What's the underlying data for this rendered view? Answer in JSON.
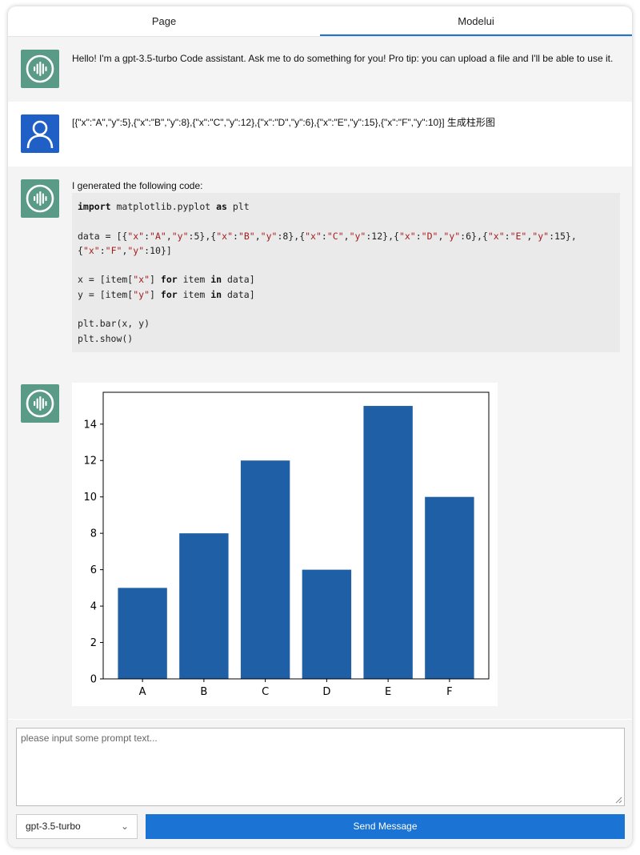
{
  "tabs": [
    {
      "label": "Page"
    },
    {
      "label": "Modelui"
    }
  ],
  "messages": {
    "greeting": "Hello! I'm a gpt-3.5-turbo Code assistant. Ask me to do something for you! Pro tip: you can upload a file and I'll be able to use it.",
    "user_prompt": "[{\"x\":\"A\",\"y\":5},{\"x\":\"B\",\"y\":8},{\"x\":\"C\",\"y\":12},{\"x\":\"D\",\"y\":6},{\"x\":\"E\",\"y\":15},{\"x\":\"F\",\"y\":10}]  生成柱形图",
    "code_intro": "I generated the following code:"
  },
  "code_tokens": {
    "import_kw": "import",
    "module": " matplotlib.pyplot ",
    "as_kw": "as",
    "alias": " plt",
    "data_line_prefix": "data = [{",
    "data_items": [
      {
        "xkey": "\"x\"",
        "xval": "\"A\"",
        "ykey": "\"y\"",
        "yval": "5"
      },
      {
        "xkey": "\"x\"",
        "xval": "\"B\"",
        "ykey": "\"y\"",
        "yval": "8"
      },
      {
        "xkey": "\"x\"",
        "xval": "\"C\"",
        "ykey": "\"y\"",
        "yval": "12"
      },
      {
        "xkey": "\"x\"",
        "xval": "\"D\"",
        "ykey": "\"y\"",
        "yval": "6"
      },
      {
        "xkey": "\"x\"",
        "xval": "\"E\"",
        "ykey": "\"y\"",
        "yval": "15"
      },
      {
        "xkey": "\"x\"",
        "xval": "\"F\"",
        "ykey": "\"y\"",
        "yval": "10"
      }
    ],
    "x_line_a": "x = [item[",
    "x_key": "\"x\"",
    "x_line_b": "] ",
    "for_kw": "for",
    "item_word": " item ",
    "in_kw": "in",
    "data_word": " data]",
    "y_line_a": "y = [item[",
    "y_key": "\"y\"",
    "bar_line": "plt.bar(x, y)",
    "show_line": "plt.show()"
  },
  "chart_data": {
    "type": "bar",
    "categories": [
      "A",
      "B",
      "C",
      "D",
      "E",
      "F"
    ],
    "values": [
      5,
      8,
      12,
      6,
      15,
      10
    ],
    "ylim": [
      0,
      15.75
    ],
    "yticks": [
      0,
      2,
      4,
      6,
      8,
      10,
      12,
      14
    ],
    "bar_color": "#1f5fa6",
    "grid": false
  },
  "input": {
    "placeholder": "please input some prompt text..."
  },
  "model_select": {
    "value": "gpt-3.5-turbo"
  },
  "send_button": {
    "label": "Send Message"
  },
  "colors": {
    "accent": "#1b73d3",
    "bot_avatar": "#5a9b87",
    "user_avatar": "#1f5fc6"
  }
}
